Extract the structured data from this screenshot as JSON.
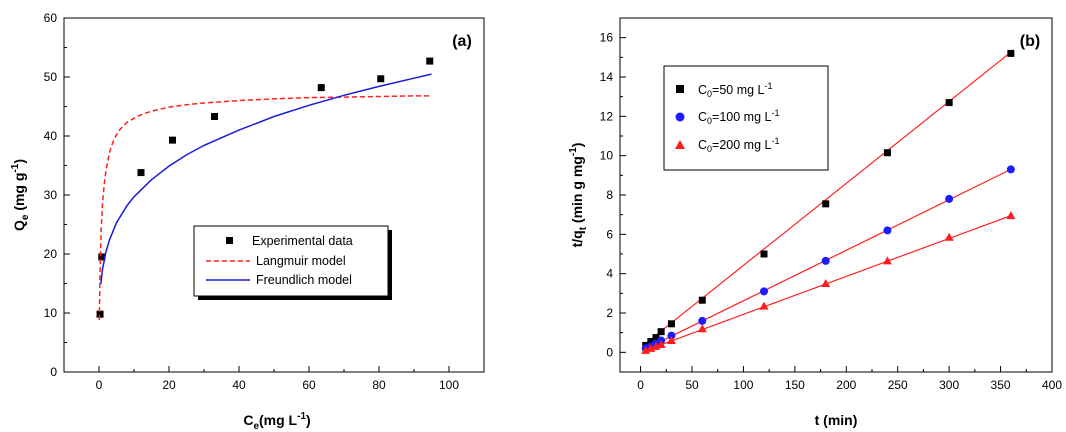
{
  "chart_data": [
    {
      "type": "scatter",
      "panel_label": "(a)",
      "xlabel": {
        "main": "C",
        "sub": "e",
        "rest": "(mg L",
        "sup": "-1",
        "end": ")"
      },
      "ylabel": {
        "main": "Q",
        "sub": "e",
        "rest": " (mg g",
        "sup": "-1",
        "end": ")"
      },
      "xlim": [
        -10,
        110
      ],
      "ylim": [
        0,
        60
      ],
      "xticks": [
        0,
        20,
        40,
        60,
        80,
        100
      ],
      "yticks": [
        0,
        10,
        20,
        30,
        40,
        50,
        60
      ],
      "grid": false,
      "legend_position": "lower-right",
      "series": [
        {
          "name": "Experimental data",
          "kind": "points",
          "marker": "square",
          "color": "#000000",
          "x": [
            0.3,
            0.8,
            12.0,
            21.0,
            33.0,
            63.5,
            80.5,
            94.5
          ],
          "y": [
            9.8,
            19.5,
            33.8,
            39.3,
            43.3,
            48.2,
            49.7,
            52.7
          ]
        },
        {
          "name": "Langmuir model",
          "kind": "line",
          "dash": "dashed",
          "color": "#ff2020",
          "x": [
            0.1,
            0.3,
            0.6,
            1,
            1.5,
            2,
            3,
            4,
            5,
            6,
            8,
            10,
            12,
            15,
            20,
            25,
            30,
            40,
            50,
            60,
            70,
            80,
            90,
            95
          ],
          "y": [
            8.8,
            17.3,
            23.8,
            28.5,
            31.9,
            34.2,
            37.2,
            39.0,
            40.2,
            41.1,
            42.3,
            43.0,
            43.6,
            44.2,
            44.9,
            45.3,
            45.6,
            46.0,
            46.3,
            46.5,
            46.6,
            46.7,
            46.8,
            46.8
          ]
        },
        {
          "name": "Freundlich model",
          "kind": "line",
          "dash": "solid",
          "color": "#1c1cd8",
          "x": [
            0.5,
            1,
            2,
            3,
            5,
            8,
            10,
            15,
            20,
            25,
            30,
            40,
            50,
            60,
            70,
            80,
            90,
            95
          ],
          "y": [
            14.9,
            17.4,
            20.4,
            22.4,
            25.3,
            28.2,
            29.7,
            32.6,
            34.9,
            36.8,
            38.4,
            41.0,
            43.3,
            45.2,
            46.9,
            48.4,
            49.8,
            50.5
          ]
        }
      ]
    },
    {
      "type": "scatter",
      "panel_label": "(b)",
      "xlabel": {
        "main": "t (min)",
        "sub": "",
        "rest": "",
        "sup": "",
        "end": ""
      },
      "ylabel": {
        "main": "t/q",
        "sub": "t",
        "rest": " (min g mg",
        "sup": "-1",
        "end": ")"
      },
      "xlim": [
        -20,
        400
      ],
      "ylim": [
        -1,
        17
      ],
      "xticks": [
        0,
        50,
        100,
        150,
        200,
        250,
        300,
        350,
        400
      ],
      "yticks": [
        0,
        2,
        4,
        6,
        8,
        10,
        12,
        14,
        16
      ],
      "grid": false,
      "legend_position": "top-left",
      "series": [
        {
          "name": "C0=50 mg L-1",
          "legend": {
            "pre": "C",
            "sub": "0",
            "mid": "=50 mg L",
            "sup": "-1"
          },
          "marker": "square",
          "color": "#000000",
          "line_color": "#ff2020",
          "fit": [
            0.25,
            0.0417
          ],
          "x": [
            5,
            10,
            15,
            20,
            30,
            60,
            120,
            180,
            240,
            300,
            360
          ],
          "y": [
            0.35,
            0.55,
            0.75,
            1.05,
            1.45,
            2.65,
            5.0,
            7.55,
            10.15,
            12.7,
            15.2
          ]
        },
        {
          "name": "C0=100 mg L-1",
          "legend": {
            "pre": "C",
            "sub": "0",
            "mid": "=100 mg L",
            "sup": "-1"
          },
          "marker": "circle",
          "color": "#1c1cff",
          "line_color": "#ff2020",
          "fit": [
            0.05,
            0.0257
          ],
          "x": [
            5,
            10,
            15,
            20,
            30,
            60,
            120,
            180,
            240,
            300,
            360
          ],
          "y": [
            0.2,
            0.3,
            0.45,
            0.6,
            0.85,
            1.6,
            3.1,
            4.65,
            6.2,
            7.8,
            9.3
          ]
        },
        {
          "name": "C0=200 mg L-1",
          "legend": {
            "pre": "C",
            "sub": "0",
            "mid": "=200 mg L",
            "sup": "-1"
          },
          "marker": "triangle",
          "color": "#ff1c1c",
          "line_color": "#ff2020",
          "fit": [
            0.0,
            0.0193
          ],
          "x": [
            5,
            10,
            15,
            20,
            30,
            60,
            120,
            180,
            240,
            300,
            360
          ],
          "y": [
            0.1,
            0.2,
            0.3,
            0.4,
            0.6,
            1.2,
            2.35,
            3.5,
            4.65,
            5.85,
            6.95
          ]
        }
      ]
    }
  ]
}
